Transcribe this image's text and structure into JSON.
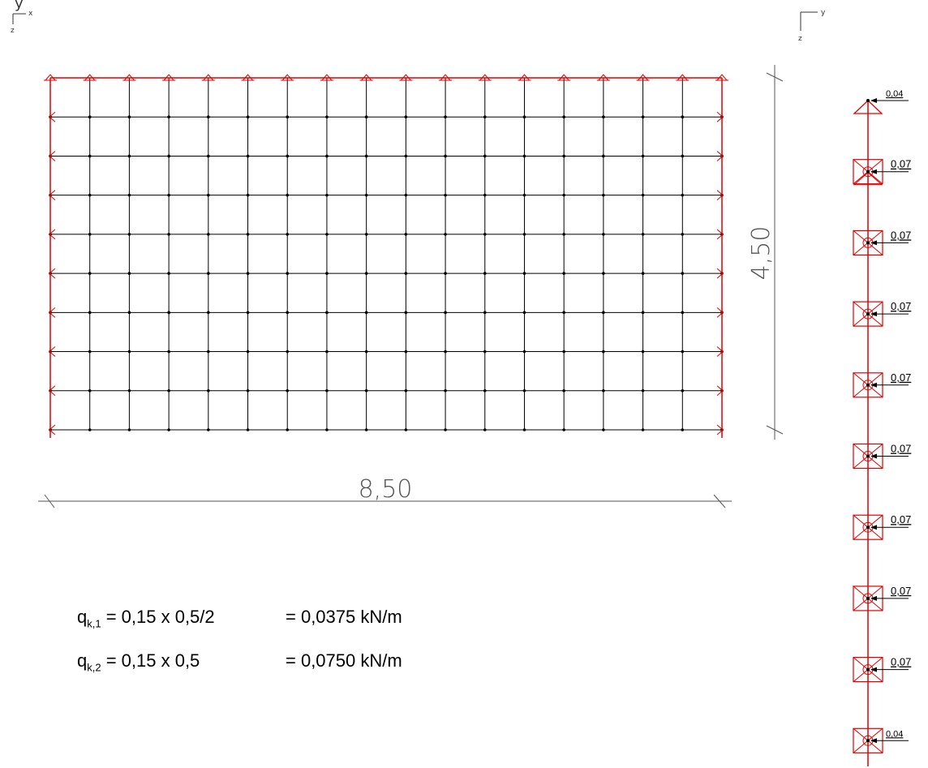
{
  "axes_left": {
    "a": "y",
    "b": "x",
    "c": "z"
  },
  "axes_right": {
    "a": "y",
    "b": "z"
  },
  "dimensions": {
    "width": "8,50",
    "height": "4,50"
  },
  "grid": {
    "columns": 17,
    "rows": 9
  },
  "colors": {
    "support": "#e00000",
    "mesh": "#000000",
    "dimension": "#555555"
  },
  "column_loads": [
    "0,04",
    "0,07",
    "0,07",
    "0,07",
    "0,07",
    "0,07",
    "0,07",
    "0,07",
    "0,07",
    "0,04"
  ],
  "formulas": [
    {
      "symbol": "q",
      "sub": "k,1",
      "expr": " = 0,15 x 0,5/2",
      "result": "= 0,0375 kN/m"
    },
    {
      "symbol": "q",
      "sub": "k,2",
      "expr": " = 0,15 x 0,5",
      "result": "= 0,0750 kN/m"
    }
  ]
}
